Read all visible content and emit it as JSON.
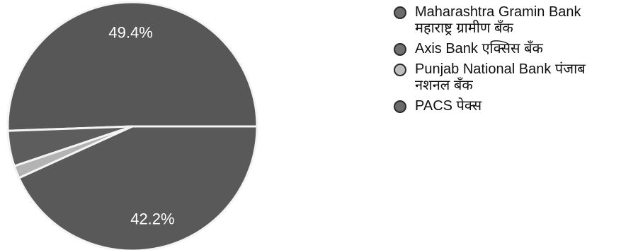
{
  "chart_data": {
    "type": "pie",
    "slices": [
      {
        "label": "Maharashtra Gramin Bank महाराष्ट्र ग्रामीण बँक",
        "value": 49.4,
        "color": "#575757",
        "swatch": "#6b6b6b"
      },
      {
        "label": "Axis Bank एक्सिस बँक",
        "value": 4.5,
        "color": "#5d5d5d",
        "swatch": "#707070"
      },
      {
        "label": "Punjab National Bank पंजाब नशनल बँक",
        "value": 1.6,
        "color": "#b3b3b3",
        "swatch": "#bdbdbd"
      },
      {
        "label": "PACS पेक्स",
        "value": 42.2,
        "color": "#595959",
        "swatch": "#6a6a6a"
      }
    ],
    "data_labels": [
      "49.4%",
      "",
      "",
      "42.2%"
    ],
    "legend_position": "right"
  }
}
